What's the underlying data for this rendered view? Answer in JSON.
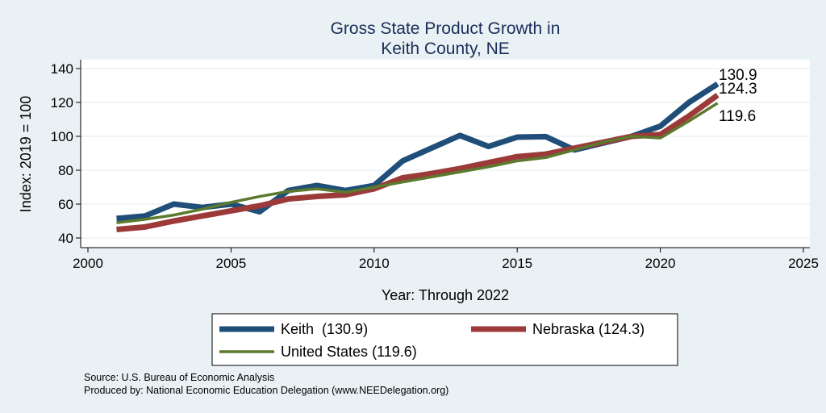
{
  "chart_data": {
    "type": "line",
    "title": "Gross State Product Growth in",
    "subtitle": "Keith County, NE",
    "xlabel": "Year: Through 2022",
    "ylabel": "Index: 2019 = 100",
    "xlim": [
      2000,
      2025
    ],
    "ylim": [
      40,
      140
    ],
    "xticks": [
      2000,
      2005,
      2010,
      2015,
      2020,
      2025
    ],
    "yticks": [
      40,
      60,
      80,
      100,
      120,
      140
    ],
    "grid": true,
    "legend_position": "bottom",
    "x": [
      2001,
      2002,
      2003,
      2004,
      2005,
      2006,
      2007,
      2008,
      2009,
      2010,
      2011,
      2012,
      2013,
      2014,
      2015,
      2016,
      2017,
      2018,
      2019,
      2020,
      2021,
      2022
    ],
    "series": [
      {
        "name": "Keith  (130.9)",
        "color": "#1f4e79",
        "values": [
          51.5,
          53,
          60,
          58,
          60,
          55.5,
          68,
          71,
          68,
          71,
          85.5,
          93,
          100.5,
          94,
          99.5,
          99.8,
          92,
          96,
          100,
          106,
          120,
          130.9
        ],
        "end_label": "130.9"
      },
      {
        "name": "Nebraska (124.3)",
        "color": "#9c3a3a",
        "values": [
          45,
          46.5,
          50,
          53,
          56,
          59,
          63,
          64.5,
          65.5,
          69,
          75.5,
          78,
          81,
          84.5,
          88,
          89.5,
          93,
          96.5,
          100,
          101,
          112,
          124.3
        ],
        "end_label": "124.3"
      },
      {
        "name": "United States (119.6)",
        "color": "#5b7a2e",
        "values": [
          49,
          51,
          53.5,
          57,
          61,
          64.5,
          67.5,
          69,
          67,
          70,
          73,
          76,
          79,
          82,
          85.5,
          87.5,
          92,
          96.5,
          100,
          99,
          109,
          119.6
        ],
        "end_label": "119.6"
      }
    ]
  },
  "source_text": "Source: U.S. Bureau of Economic Analysis",
  "producer_text": "Produced by: National Economic Education Delegation (www.NEEDelegation.org)",
  "colors": {
    "background": "#eaf1f4",
    "plot_background": "#ffffff",
    "title": "#1a2e5a",
    "grid": "#e6eaee"
  }
}
